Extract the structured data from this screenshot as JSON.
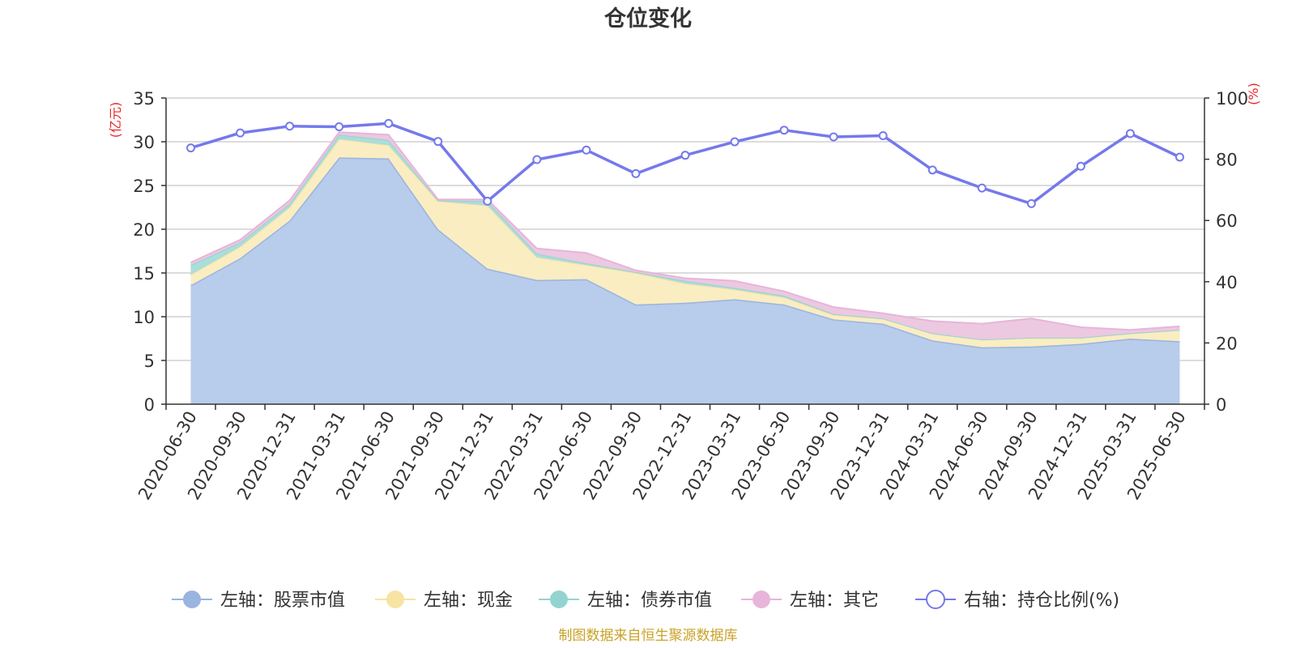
{
  "chart_data": {
    "type": "area",
    "title": "仓位变化",
    "left_axis": {
      "unit_label": "(亿元)",
      "ylim": [
        0,
        35
      ],
      "ticks": [
        0,
        5,
        10,
        15,
        20,
        25,
        30,
        35
      ]
    },
    "right_axis": {
      "unit_label": "(%)",
      "ylim": [
        0,
        100
      ],
      "ticks": [
        0,
        20,
        40,
        60,
        80,
        100
      ]
    },
    "categories": [
      "2020-06-30",
      "2020-09-30",
      "2020-12-31",
      "2021-03-31",
      "2021-06-30",
      "2021-09-30",
      "2021-12-31",
      "2022-03-31",
      "2022-06-30",
      "2022-09-30",
      "2022-12-31",
      "2023-03-31",
      "2023-06-30",
      "2023-09-30",
      "2023-12-31",
      "2024-03-31",
      "2024-06-30",
      "2024-09-30",
      "2024-12-31",
      "2025-03-31",
      "2025-06-30"
    ],
    "stacked_series": [
      {
        "name": "左轴：股票市值",
        "axis": "left",
        "color": "#9ab4e0",
        "fill": "#b8cceb",
        "values": [
          13.6,
          16.7,
          21.0,
          28.2,
          28.1,
          20.0,
          15.5,
          14.2,
          14.3,
          11.4,
          11.6,
          12.0,
          11.4,
          9.7,
          9.2,
          7.3,
          6.5,
          6.6,
          6.9,
          7.5,
          7.2
        ]
      },
      {
        "name": "左轴：现金",
        "axis": "left",
        "color": "#f7e3a2",
        "fill": "#faedc1",
        "values": [
          1.2,
          1.3,
          1.5,
          2.1,
          1.5,
          3.2,
          7.2,
          2.6,
          1.6,
          3.6,
          2.2,
          1.1,
          0.8,
          0.5,
          0.6,
          0.8,
          0.9,
          1.0,
          0.7,
          0.6,
          1.3
        ]
      },
      {
        "name": "左轴：债券市值",
        "axis": "left",
        "color": "#93d4d0",
        "fill": "#a9dedb",
        "values": [
          1.1,
          0.5,
          0.4,
          0.5,
          0.6,
          0.1,
          0.5,
          0.4,
          0.2,
          0.1,
          0.3,
          0.2,
          0.2,
          0.1,
          0.0,
          0.0,
          0.0,
          0.0,
          0.0,
          0.0,
          0.0
        ]
      },
      {
        "name": "左轴：其它",
        "axis": "left",
        "color": "#e7b5d9",
        "fill": "#ecc8e1",
        "values": [
          0.3,
          0.3,
          0.4,
          0.3,
          0.6,
          0.1,
          0.2,
          0.6,
          1.2,
          0.2,
          0.3,
          0.8,
          0.5,
          0.8,
          0.6,
          1.4,
          1.8,
          2.2,
          1.2,
          0.4,
          0.4
        ]
      }
    ],
    "line_series": {
      "name": "右轴：持仓比例(%)",
      "axis": "right",
      "color": "#7579eb",
      "values": [
        83.7,
        88.6,
        90.8,
        90.6,
        91.7,
        85.8,
        66.3,
        79.9,
        83.0,
        75.3,
        81.3,
        85.7,
        89.5,
        87.3,
        87.7,
        76.5,
        70.6,
        65.5,
        77.7,
        88.4,
        80.7
      ]
    },
    "grid": true,
    "legend_position": "bottom"
  },
  "footer": {
    "source_text": "制图数据来自恒生聚源数据库"
  }
}
